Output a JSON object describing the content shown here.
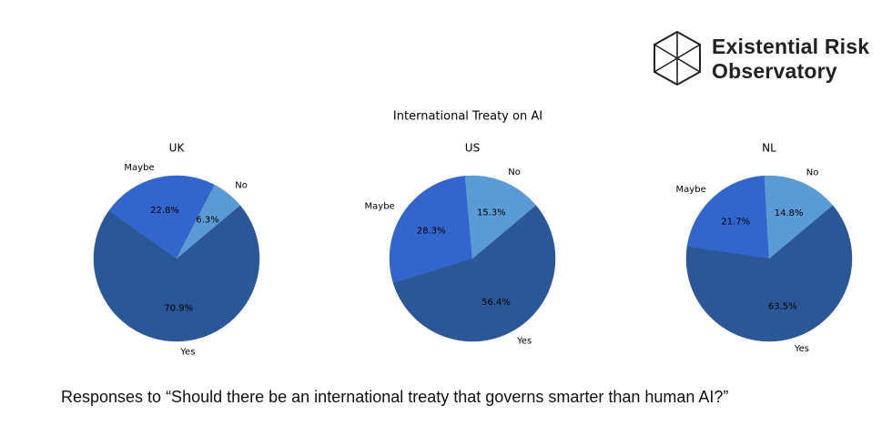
{
  "logo": {
    "line1": "Existential Risk",
    "line2": "Observatory",
    "icon": "hexagon-cube-icon"
  },
  "caption": "Responses to “Should there be an international treaty that governs smarter than human AI?”",
  "colors": {
    "Yes": "#2b5797",
    "Maybe": "#3366cc",
    "No": "#5b9bd5"
  },
  "chart_data": {
    "type": "pie",
    "title": "International Treaty on AI",
    "categories": [
      "Yes",
      "Maybe",
      "No"
    ],
    "charts": [
      {
        "name": "UK",
        "values": [
          70.9,
          22.8,
          6.3
        ]
      },
      {
        "name": "US",
        "values": [
          56.4,
          28.3,
          15.3
        ]
      },
      {
        "name": "NL",
        "values": [
          63.5,
          21.7,
          14.8
        ]
      }
    ],
    "value_format": "percent_1dp"
  }
}
